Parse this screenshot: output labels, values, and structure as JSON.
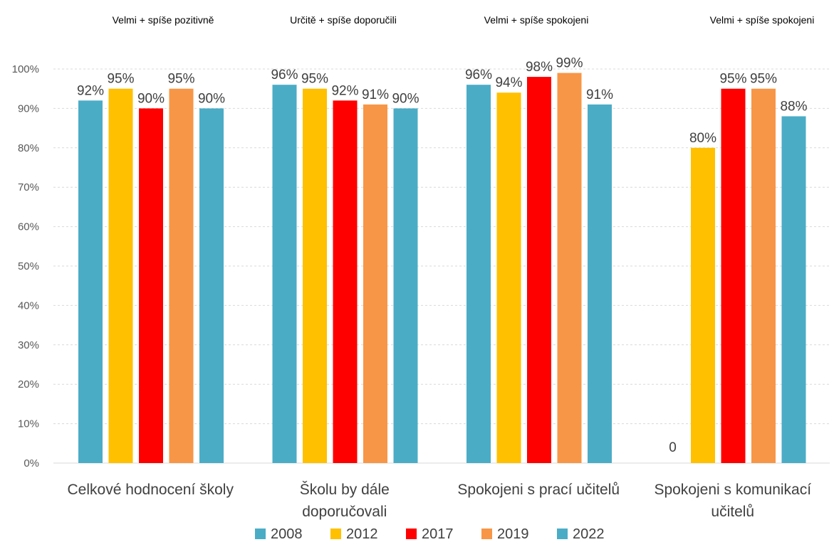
{
  "chart_data": {
    "type": "bar",
    "group_titles": [
      "Velmi + spíše pozitivně",
      "Určitě + spíše doporučili",
      "Velmi + spíše spokojeni",
      "Velmi + spíše spokojeni"
    ],
    "categories": [
      [
        "Celkové hodnocení školy"
      ],
      [
        "Školu by dále",
        "doporučovali"
      ],
      [
        "Spokojeni s prací učitelů"
      ],
      [
        "Spokojeni s komunikací",
        "učitelů"
      ]
    ],
    "series": [
      {
        "name": "2008",
        "color": "#4BACC6",
        "values": [
          92,
          96,
          96,
          null
        ],
        "labels": [
          "92%",
          "96%",
          "96%",
          "0"
        ]
      },
      {
        "name": "2012",
        "color": "#FFC000",
        "values": [
          95,
          95,
          94,
          80
        ],
        "labels": [
          "95%",
          "95%",
          "94%",
          "80%"
        ]
      },
      {
        "name": "2017",
        "color": "#FF0000",
        "values": [
          90,
          92,
          98,
          95
        ],
        "labels": [
          "90%",
          "92%",
          "98%",
          "95%"
        ]
      },
      {
        "name": "2019",
        "color": "#F79646",
        "values": [
          95,
          91,
          99,
          95
        ],
        "labels": [
          "95%",
          "91%",
          "99%",
          "95%"
        ]
      },
      {
        "name": "2022",
        "color": "#4BACC6",
        "values": [
          90,
          90,
          91,
          88
        ],
        "labels": [
          "90%",
          "90%",
          "91%",
          "88%"
        ]
      }
    ],
    "y_ticks": [
      "0%",
      "10%",
      "20%",
      "30%",
      "40%",
      "50%",
      "60%",
      "70%",
      "80%",
      "90%",
      "100%"
    ],
    "ylim": [
      0,
      100
    ],
    "grid": true,
    "legend_position": "bottom"
  }
}
